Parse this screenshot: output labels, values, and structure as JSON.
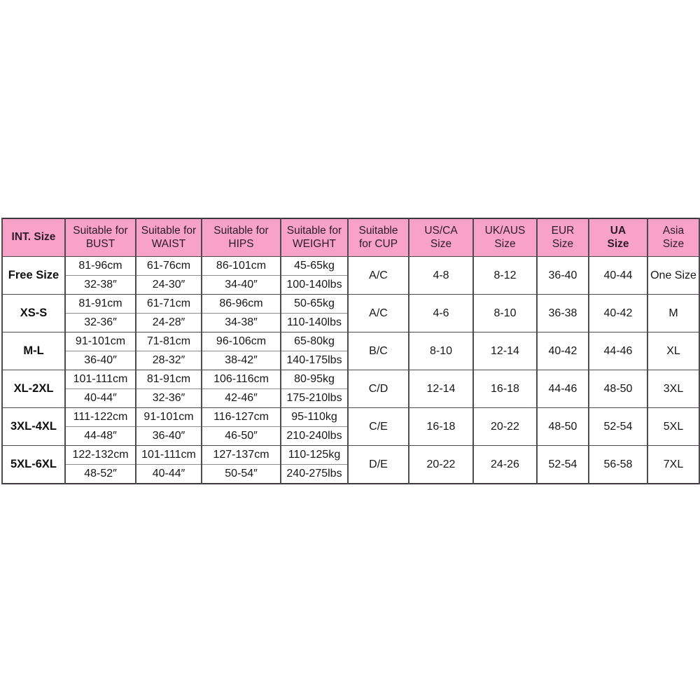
{
  "table": {
    "header": [
      {
        "label": "INT. Size",
        "bold": true
      },
      {
        "label": "Suitable for\nBUST",
        "bold": false
      },
      {
        "label": "Suitable for\nWAIST",
        "bold": false
      },
      {
        "label": "Suitable for\nHIPS",
        "bold": false
      },
      {
        "label": "Suitable for\nWEIGHT",
        "bold": false
      },
      {
        "label": "Suitable\nfor CUP",
        "bold": false
      },
      {
        "label": "US/CA\nSize",
        "bold": false
      },
      {
        "label": "UK/AUS\nSize",
        "bold": false
      },
      {
        "label": "EUR\nSize",
        "bold": false
      },
      {
        "label": "UA\nSize",
        "bold": true
      },
      {
        "label": "Asia\nSize",
        "bold": false
      }
    ],
    "rows": [
      {
        "size": "Free Size",
        "bust": [
          "81-96cm",
          "32-38″"
        ],
        "waist": [
          "61-76cm",
          "24-30″"
        ],
        "hips": [
          "86-101cm",
          "34-40″"
        ],
        "weight": [
          "45-65kg",
          "100-140lbs"
        ],
        "cup": "A/C",
        "us_ca": "4-8",
        "uk_aus": "8-12",
        "eur": "36-40",
        "ua": "40-44",
        "asia": "One Size"
      },
      {
        "size": "XS-S",
        "bust": [
          "81-91cm",
          "32-36″"
        ],
        "waist": [
          "61-71cm",
          "24-28″"
        ],
        "hips": [
          "86-96cm",
          "34-38″"
        ],
        "weight": [
          "50-65kg",
          "110-140lbs"
        ],
        "cup": "A/C",
        "us_ca": "4-6",
        "uk_aus": "8-10",
        "eur": "36-38",
        "ua": "40-42",
        "asia": "M"
      },
      {
        "size": "M-L",
        "bust": [
          "91-101cm",
          "36-40″"
        ],
        "waist": [
          "71-81cm",
          "28-32″"
        ],
        "hips": [
          "96-106cm",
          "38-42″"
        ],
        "weight": [
          "65-80kg",
          "140-175lbs"
        ],
        "cup": "B/C",
        "us_ca": "8-10",
        "uk_aus": "12-14",
        "eur": "40-42",
        "ua": "44-46",
        "asia": "XL"
      },
      {
        "size": "XL-2XL",
        "bust": [
          "101-111cm",
          "40-44″"
        ],
        "waist": [
          "81-91cm",
          "32-36″"
        ],
        "hips": [
          "106-116cm",
          "42-46″"
        ],
        "weight": [
          "80-95kg",
          "175-210lbs"
        ],
        "cup": "C/D",
        "us_ca": "12-14",
        "uk_aus": "16-18",
        "eur": "44-46",
        "ua": "48-50",
        "asia": "3XL"
      },
      {
        "size": "3XL-4XL",
        "bust": [
          "111-122cm",
          "44-48″"
        ],
        "waist": [
          "91-101cm",
          "36-40″"
        ],
        "hips": [
          "116-127cm",
          "46-50″"
        ],
        "weight": [
          "95-110kg",
          "210-240lbs"
        ],
        "cup": "C/E",
        "us_ca": "16-18",
        "uk_aus": "20-22",
        "eur": "48-50",
        "ua": "52-54",
        "asia": "5XL"
      },
      {
        "size": "5XL-6XL",
        "bust": [
          "122-132cm",
          "48-52″"
        ],
        "waist": [
          "101-111cm",
          "40-44″"
        ],
        "hips": [
          "127-137cm",
          "50-54″"
        ],
        "weight": [
          "110-125kg",
          "240-275lbs"
        ],
        "cup": "D/E",
        "us_ca": "20-22",
        "uk_aus": "24-26",
        "eur": "52-54",
        "ua": "56-58",
        "asia": "7XL"
      }
    ],
    "colors": {
      "header_bg": "#f7a2c6",
      "header_text": "#2d1b2d",
      "body_text": "#161616",
      "border": "#4f4a52"
    }
  }
}
